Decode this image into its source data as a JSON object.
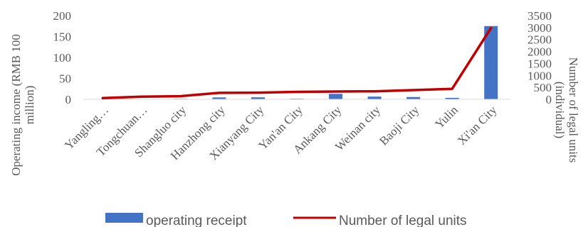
{
  "chart_data": {
    "type": "bar+line",
    "categories": [
      "Yangling…",
      "Tongchuan…",
      "Shangluo city",
      "Hanzhong city",
      "Xianyang City",
      "Yan'an City",
      "Ankang City",
      "Weinan city",
      "Baoji City",
      "Yulin",
      "Xi'an City"
    ],
    "series": [
      {
        "name": "operating receipt",
        "type": "bar",
        "axis": "left",
        "color": "#4472C4",
        "values": [
          0.5,
          0.8,
          1.2,
          4.5,
          4.8,
          1.5,
          13,
          6.5,
          5.5,
          3.5,
          175
        ]
      },
      {
        "name": "Number of legal units",
        "type": "line",
        "axis": "right",
        "color": "#C00000",
        "values": [
          50,
          110,
          130,
          270,
          280,
          310,
          325,
          335,
          385,
          440,
          2980
        ]
      }
    ],
    "y_left": {
      "label": "Operating income (RMB 100 million)",
      "ylim": [
        0,
        200
      ],
      "ticks": [
        "0",
        "50",
        "100",
        "150",
        "200"
      ]
    },
    "y_right": {
      "label": "Number of legal units (individual)",
      "ylim": [
        0,
        3500
      ],
      "ticks": [
        "0",
        "500",
        "1000",
        "1500",
        "2000",
        "2500",
        "3000",
        "3500"
      ]
    },
    "legend_position": "bottom",
    "grid": false
  }
}
